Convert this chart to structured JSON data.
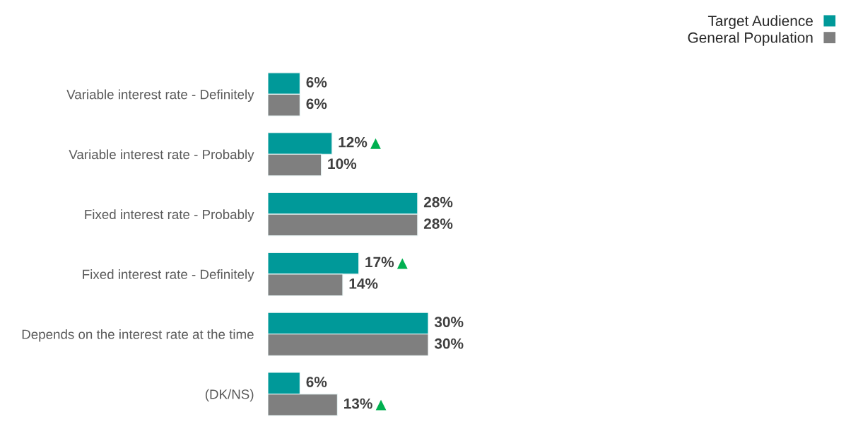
{
  "chart_data": {
    "type": "bar",
    "orientation": "horizontal",
    "categories": [
      "Variable interest rate - Definitely",
      "Variable interest rate - Probably",
      "Fixed interest rate - Probably",
      "Fixed interest rate - Definitely",
      "Depends on the interest rate at the time",
      "(DK/NS)"
    ],
    "series": [
      {
        "name": "Target Audience",
        "color": "#009999",
        "values": [
          6,
          12,
          28,
          17,
          30,
          6
        ],
        "value_labels": [
          "6%",
          "12%",
          "28%",
          "17%",
          "30%",
          "6%"
        ]
      },
      {
        "name": "General Population",
        "color": "#7f7f7f",
        "values": [
          6,
          10,
          28,
          14,
          30,
          13
        ],
        "value_labels": [
          "6%",
          "10%",
          "28%",
          "14%",
          "30%",
          "13%"
        ]
      }
    ],
    "tick_labels": "y",
    "grid": false,
    "legend": "top right",
    "annotations": [
      {
        "text": "▲",
        "x": 12,
        "y": "Variable interest rate - Probably"
      },
      {
        "text": "▲",
        "x": 17,
        "y": "Fixed interest rate - Definitely"
      },
      {
        "text": "▲",
        "x": 13,
        "y": "(DK/NS)"
      }
    ]
  }
}
